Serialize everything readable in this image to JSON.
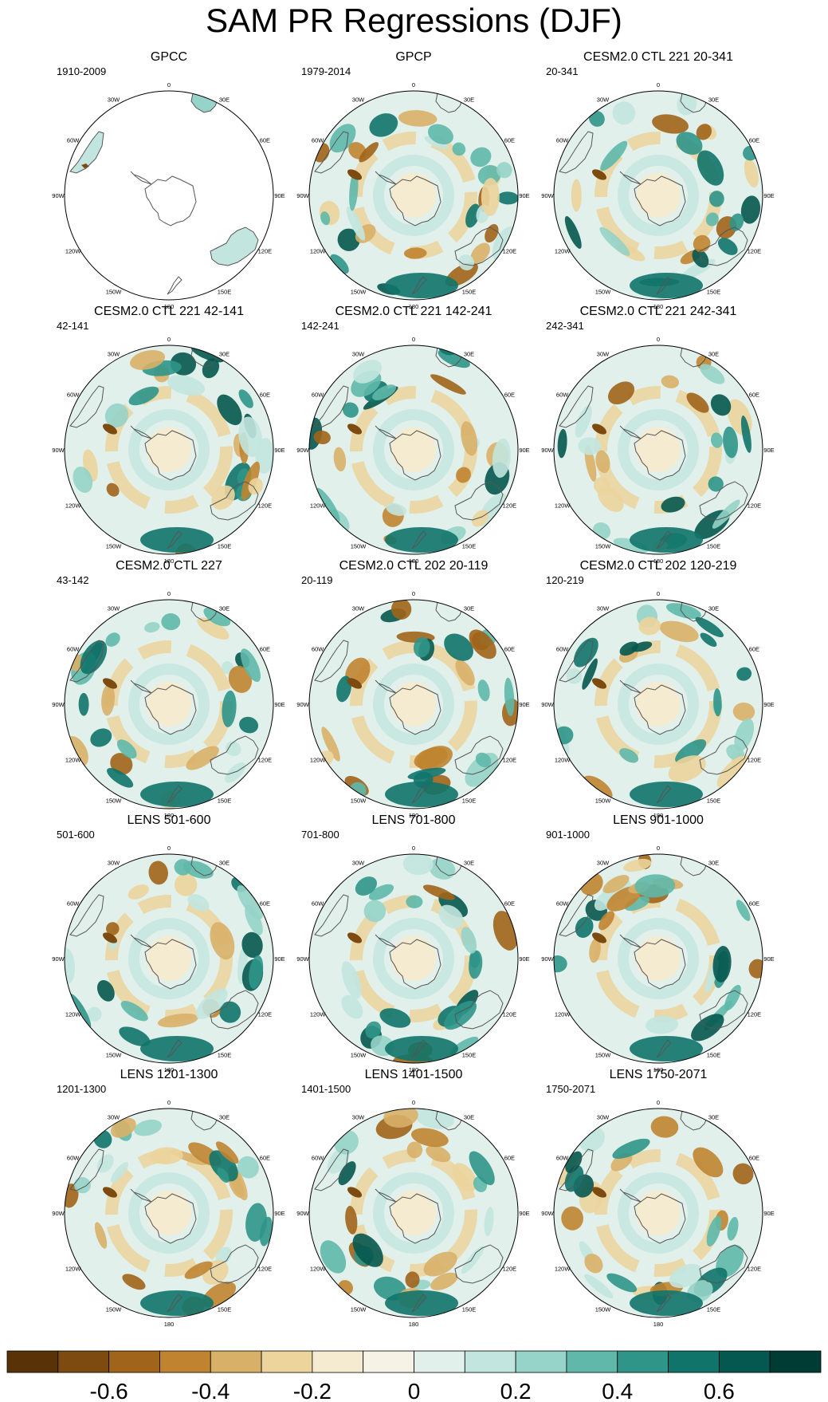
{
  "title": "SAM PR Regressions (DJF)",
  "lon_labels": [
    "0",
    "30E",
    "60E",
    "90E",
    "120E",
    "150E",
    "180",
    "150W",
    "120W",
    "90W",
    "60W",
    "30W"
  ],
  "colors": {
    "palette": [
      "#5a3208",
      "#7d4a10",
      "#a0641a",
      "#c08430",
      "#d9b068",
      "#ecd49c",
      "#f5ebd0",
      "#f7f2e6",
      "#e2f0ec",
      "#c2e6df",
      "#96d3c8",
      "#5fb8aa",
      "#2f9588",
      "#11746a",
      "#05584f",
      "#003c34"
    ],
    "continent_outline": "#555555",
    "frame": "#000000"
  },
  "colorbar": {
    "tick_labels": [
      "-0.6",
      "-0.4",
      "-0.2",
      "0",
      "0.2",
      "0.4",
      "0.6"
    ],
    "tick_values": [
      -0.6,
      -0.4,
      -0.2,
      0,
      0.2,
      0.4,
      0.6
    ]
  },
  "panels": [
    {
      "title": "GPCC",
      "period": "1910-2009",
      "field": "obs_sparse"
    },
    {
      "title": "GPCP",
      "period": "1979-2014",
      "field": "obs"
    },
    {
      "title": "CESM2.0 CTL 221 20-341",
      "period": "20-341",
      "field": "model"
    },
    {
      "title": "CESM2.0 CTL 221 42-141",
      "period": "42-141",
      "field": "model"
    },
    {
      "title": "CESM2.0 CTL 221 142-241",
      "period": "142-241",
      "field": "model"
    },
    {
      "title": "CESM2.0 CTL 221 242-341",
      "period": "242-341",
      "field": "model"
    },
    {
      "title": "CESM2.0 CTL 227",
      "period": "43-142",
      "field": "model"
    },
    {
      "title": "CESM2.0 CTL 202 20-119",
      "period": "20-119",
      "field": "model"
    },
    {
      "title": "CESM2.0 CTL 202 120-219",
      "period": "120-219",
      "field": "model"
    },
    {
      "title": "LENS 501-600",
      "period": "501-600",
      "field": "model"
    },
    {
      "title": "LENS 701-800",
      "period": "701-800",
      "field": "model"
    },
    {
      "title": "LENS 901-1000",
      "period": "901-1000",
      "field": "model"
    },
    {
      "title": "LENS 1201-1300",
      "period": "1201-1300",
      "field": "model"
    },
    {
      "title": "LENS 1401-1500",
      "period": "1401-1500",
      "field": "model"
    },
    {
      "title": "LENS 1750-2071",
      "period": "1750-2071",
      "field": "model"
    }
  ]
}
